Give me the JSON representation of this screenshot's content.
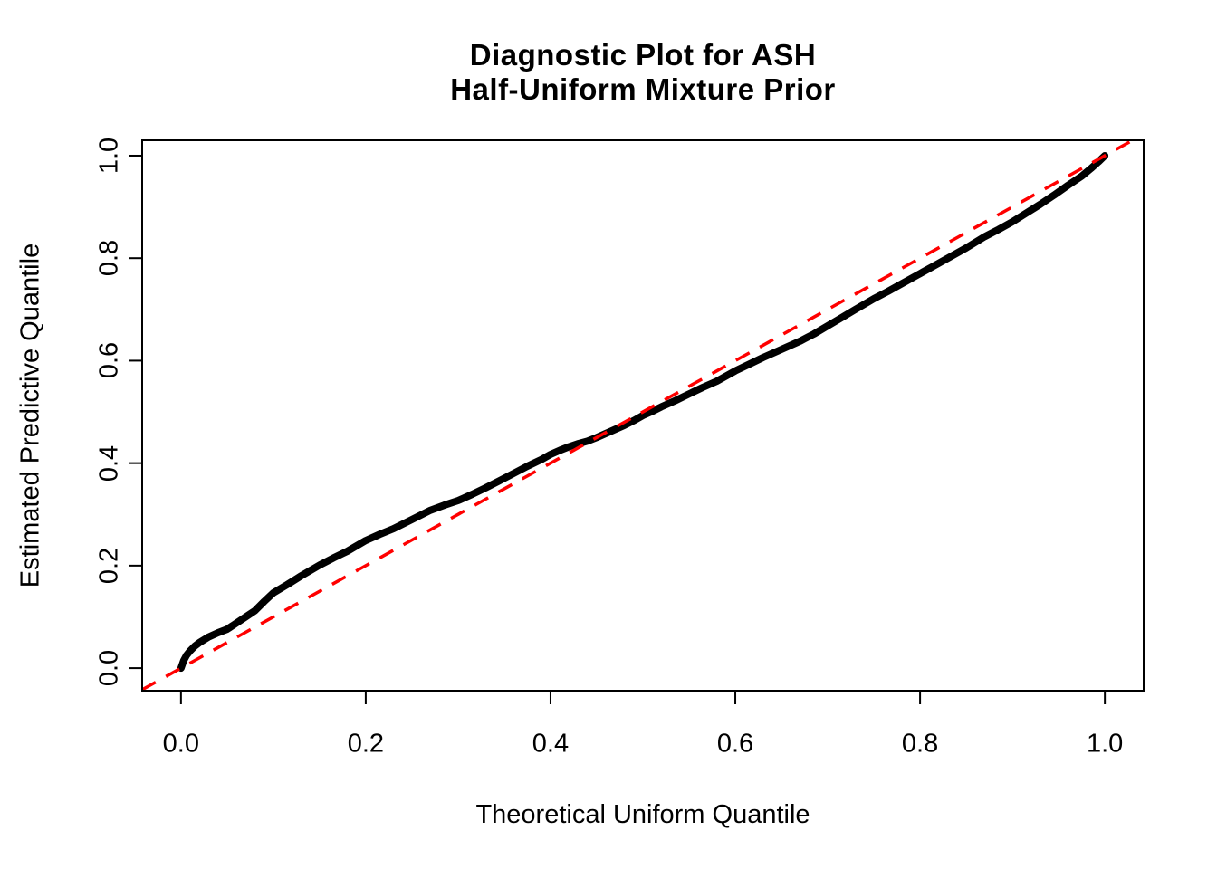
{
  "colors": {
    "background": "#FFFFFF",
    "frame": "#000000",
    "curve": "#000000",
    "reference": "#FF0000",
    "text": "#000000"
  },
  "chart_data": {
    "type": "line",
    "title_lines": [
      "Diagnostic Plot for ASH",
      "Half-Uniform Mixture Prior"
    ],
    "xlabel": "Theoretical Uniform Quantile",
    "ylabel": "Estimated Predictive Quantile",
    "xlim": [
      -0.042,
      1.042
    ],
    "ylim": [
      -0.044,
      1.03
    ],
    "x_ticks": [
      0.0,
      0.2,
      0.4,
      0.6,
      0.8,
      1.0
    ],
    "y_ticks": [
      0.0,
      0.2,
      0.4,
      0.6,
      0.8,
      1.0
    ],
    "x_tick_labels": [
      "0.0",
      "0.2",
      "0.4",
      "0.6",
      "0.8",
      "1.0"
    ],
    "y_tick_labels": [
      "0.0",
      "0.2",
      "0.4",
      "0.6",
      "0.8",
      "1.0"
    ],
    "grid": false,
    "legend_position": "none",
    "reference_line": {
      "name": "identity-diagonal y = x",
      "slope": 1,
      "intercept": 0,
      "color": "#FF0000",
      "style": "dashed"
    },
    "series": [
      {
        "name": "estimated-predictive-quantile-curve",
        "color": "#000000",
        "style": "thick solid (densely plotted points)",
        "points": [
          [
            0.0,
            0.0
          ],
          [
            0.003,
            0.015
          ],
          [
            0.006,
            0.025
          ],
          [
            0.01,
            0.034
          ],
          [
            0.015,
            0.043
          ],
          [
            0.02,
            0.05
          ],
          [
            0.03,
            0.061
          ],
          [
            0.04,
            0.069
          ],
          [
            0.05,
            0.076
          ],
          [
            0.06,
            0.088
          ],
          [
            0.07,
            0.1
          ],
          [
            0.08,
            0.112
          ],
          [
            0.09,
            0.13
          ],
          [
            0.1,
            0.147
          ],
          [
            0.115,
            0.163
          ],
          [
            0.13,
            0.18
          ],
          [
            0.15,
            0.201
          ],
          [
            0.165,
            0.215
          ],
          [
            0.18,
            0.228
          ],
          [
            0.2,
            0.249
          ],
          [
            0.215,
            0.261
          ],
          [
            0.23,
            0.272
          ],
          [
            0.25,
            0.29
          ],
          [
            0.27,
            0.308
          ],
          [
            0.285,
            0.318
          ],
          [
            0.3,
            0.327
          ],
          [
            0.315,
            0.339
          ],
          [
            0.33,
            0.352
          ],
          [
            0.345,
            0.366
          ],
          [
            0.36,
            0.38
          ],
          [
            0.375,
            0.394
          ],
          [
            0.39,
            0.407
          ],
          [
            0.4,
            0.417
          ],
          [
            0.41,
            0.425
          ],
          [
            0.42,
            0.432
          ],
          [
            0.43,
            0.438
          ],
          [
            0.44,
            0.443
          ],
          [
            0.45,
            0.45
          ],
          [
            0.46,
            0.458
          ],
          [
            0.47,
            0.466
          ],
          [
            0.48,
            0.474
          ],
          [
            0.49,
            0.483
          ],
          [
            0.5,
            0.493
          ],
          [
            0.51,
            0.501
          ],
          [
            0.52,
            0.51
          ],
          [
            0.535,
            0.522
          ],
          [
            0.55,
            0.535
          ],
          [
            0.565,
            0.548
          ],
          [
            0.58,
            0.56
          ],
          [
            0.6,
            0.58
          ],
          [
            0.615,
            0.593
          ],
          [
            0.63,
            0.606
          ],
          [
            0.65,
            0.622
          ],
          [
            0.67,
            0.638
          ],
          [
            0.685,
            0.652
          ],
          [
            0.7,
            0.668
          ],
          [
            0.715,
            0.684
          ],
          [
            0.73,
            0.7
          ],
          [
            0.75,
            0.721
          ],
          [
            0.765,
            0.735
          ],
          [
            0.78,
            0.75
          ],
          [
            0.8,
            0.77
          ],
          [
            0.815,
            0.785
          ],
          [
            0.83,
            0.8
          ],
          [
            0.85,
            0.82
          ],
          [
            0.87,
            0.842
          ],
          [
            0.885,
            0.856
          ],
          [
            0.9,
            0.871
          ],
          [
            0.915,
            0.888
          ],
          [
            0.93,
            0.905
          ],
          [
            0.945,
            0.923
          ],
          [
            0.96,
            0.942
          ],
          [
            0.975,
            0.96
          ],
          [
            0.985,
            0.975
          ],
          [
            0.993,
            0.988
          ],
          [
            1.0,
            1.0
          ]
        ]
      }
    ]
  }
}
